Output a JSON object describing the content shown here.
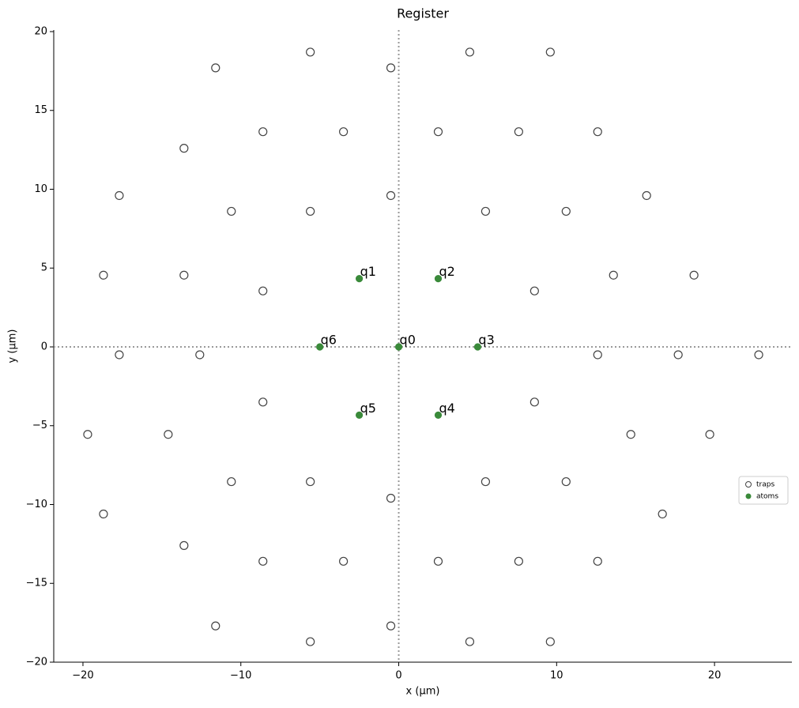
{
  "chart_data": {
    "type": "scatter",
    "title": "Register",
    "xlabel": "x (µm)",
    "ylabel": "y (µm)",
    "xlim": [
      -21.85,
      24.9
    ],
    "ylim": [
      -20,
      20.1
    ],
    "xticks": [
      {
        "value": -20,
        "label": "−20"
      },
      {
        "value": -10,
        "label": "−10"
      },
      0,
      10,
      20
    ],
    "yticks": [
      {
        "value": -20,
        "label": "−20"
      },
      {
        "value": -15,
        "label": "−15"
      },
      {
        "value": -10,
        "label": "−10"
      },
      {
        "value": -5,
        "label": "−5"
      },
      0,
      5,
      10,
      15,
      20
    ],
    "reference_lines": {
      "x": 0,
      "y": 0
    },
    "legend": "center right",
    "series": [
      {
        "name": "traps",
        "color": "#444444",
        "x": [
          -5.6,
          4.5,
          9.6,
          -11.6,
          -0.5,
          -8.6,
          -3.5,
          2.5,
          7.6,
          12.6,
          -13.6,
          -17.7,
          -0.5,
          15.7,
          -10.6,
          -5.6,
          5.5,
          10.6,
          -18.7,
          -13.6,
          13.6,
          18.7,
          -8.6,
          8.6,
          -17.7,
          -12.6,
          12.6,
          17.7,
          22.8,
          -8.6,
          8.6,
          -19.7,
          -14.6,
          14.7,
          19.7,
          -10.6,
          -5.6,
          5.5,
          10.6,
          -0.5,
          -18.7,
          16.7,
          -13.6,
          -8.6,
          -3.5,
          2.5,
          7.6,
          12.6,
          -11.6,
          -0.5,
          -5.6,
          4.5,
          9.6
        ],
        "y": [
          18.7,
          18.7,
          18.7,
          17.7,
          17.7,
          13.65,
          13.65,
          13.65,
          13.65,
          13.65,
          12.6,
          9.6,
          9.6,
          9.6,
          8.6,
          8.6,
          8.6,
          8.6,
          4.55,
          4.55,
          4.55,
          4.55,
          3.55,
          3.55,
          -0.5,
          -0.5,
          -0.5,
          -0.5,
          -0.5,
          -3.5,
          -3.5,
          -5.55,
          -5.55,
          -5.55,
          -5.55,
          -8.55,
          -8.55,
          -8.55,
          -8.55,
          -9.6,
          -10.6,
          -10.6,
          -12.6,
          -13.6,
          -13.6,
          -13.6,
          -13.6,
          -13.6,
          -17.7,
          -17.7,
          -18.7,
          -18.7,
          -18.7
        ]
      },
      {
        "name": "atoms",
        "color": "#3a8a3a",
        "x": [
          0,
          -2.5,
          2.5,
          5,
          2.5,
          -2.5,
          -5
        ],
        "y": [
          0,
          4.33,
          4.33,
          0,
          -4.33,
          -4.33,
          0
        ],
        "point_labels": [
          "q0",
          "q1",
          "q2",
          "q3",
          "q4",
          "q5",
          "q6"
        ]
      }
    ]
  }
}
